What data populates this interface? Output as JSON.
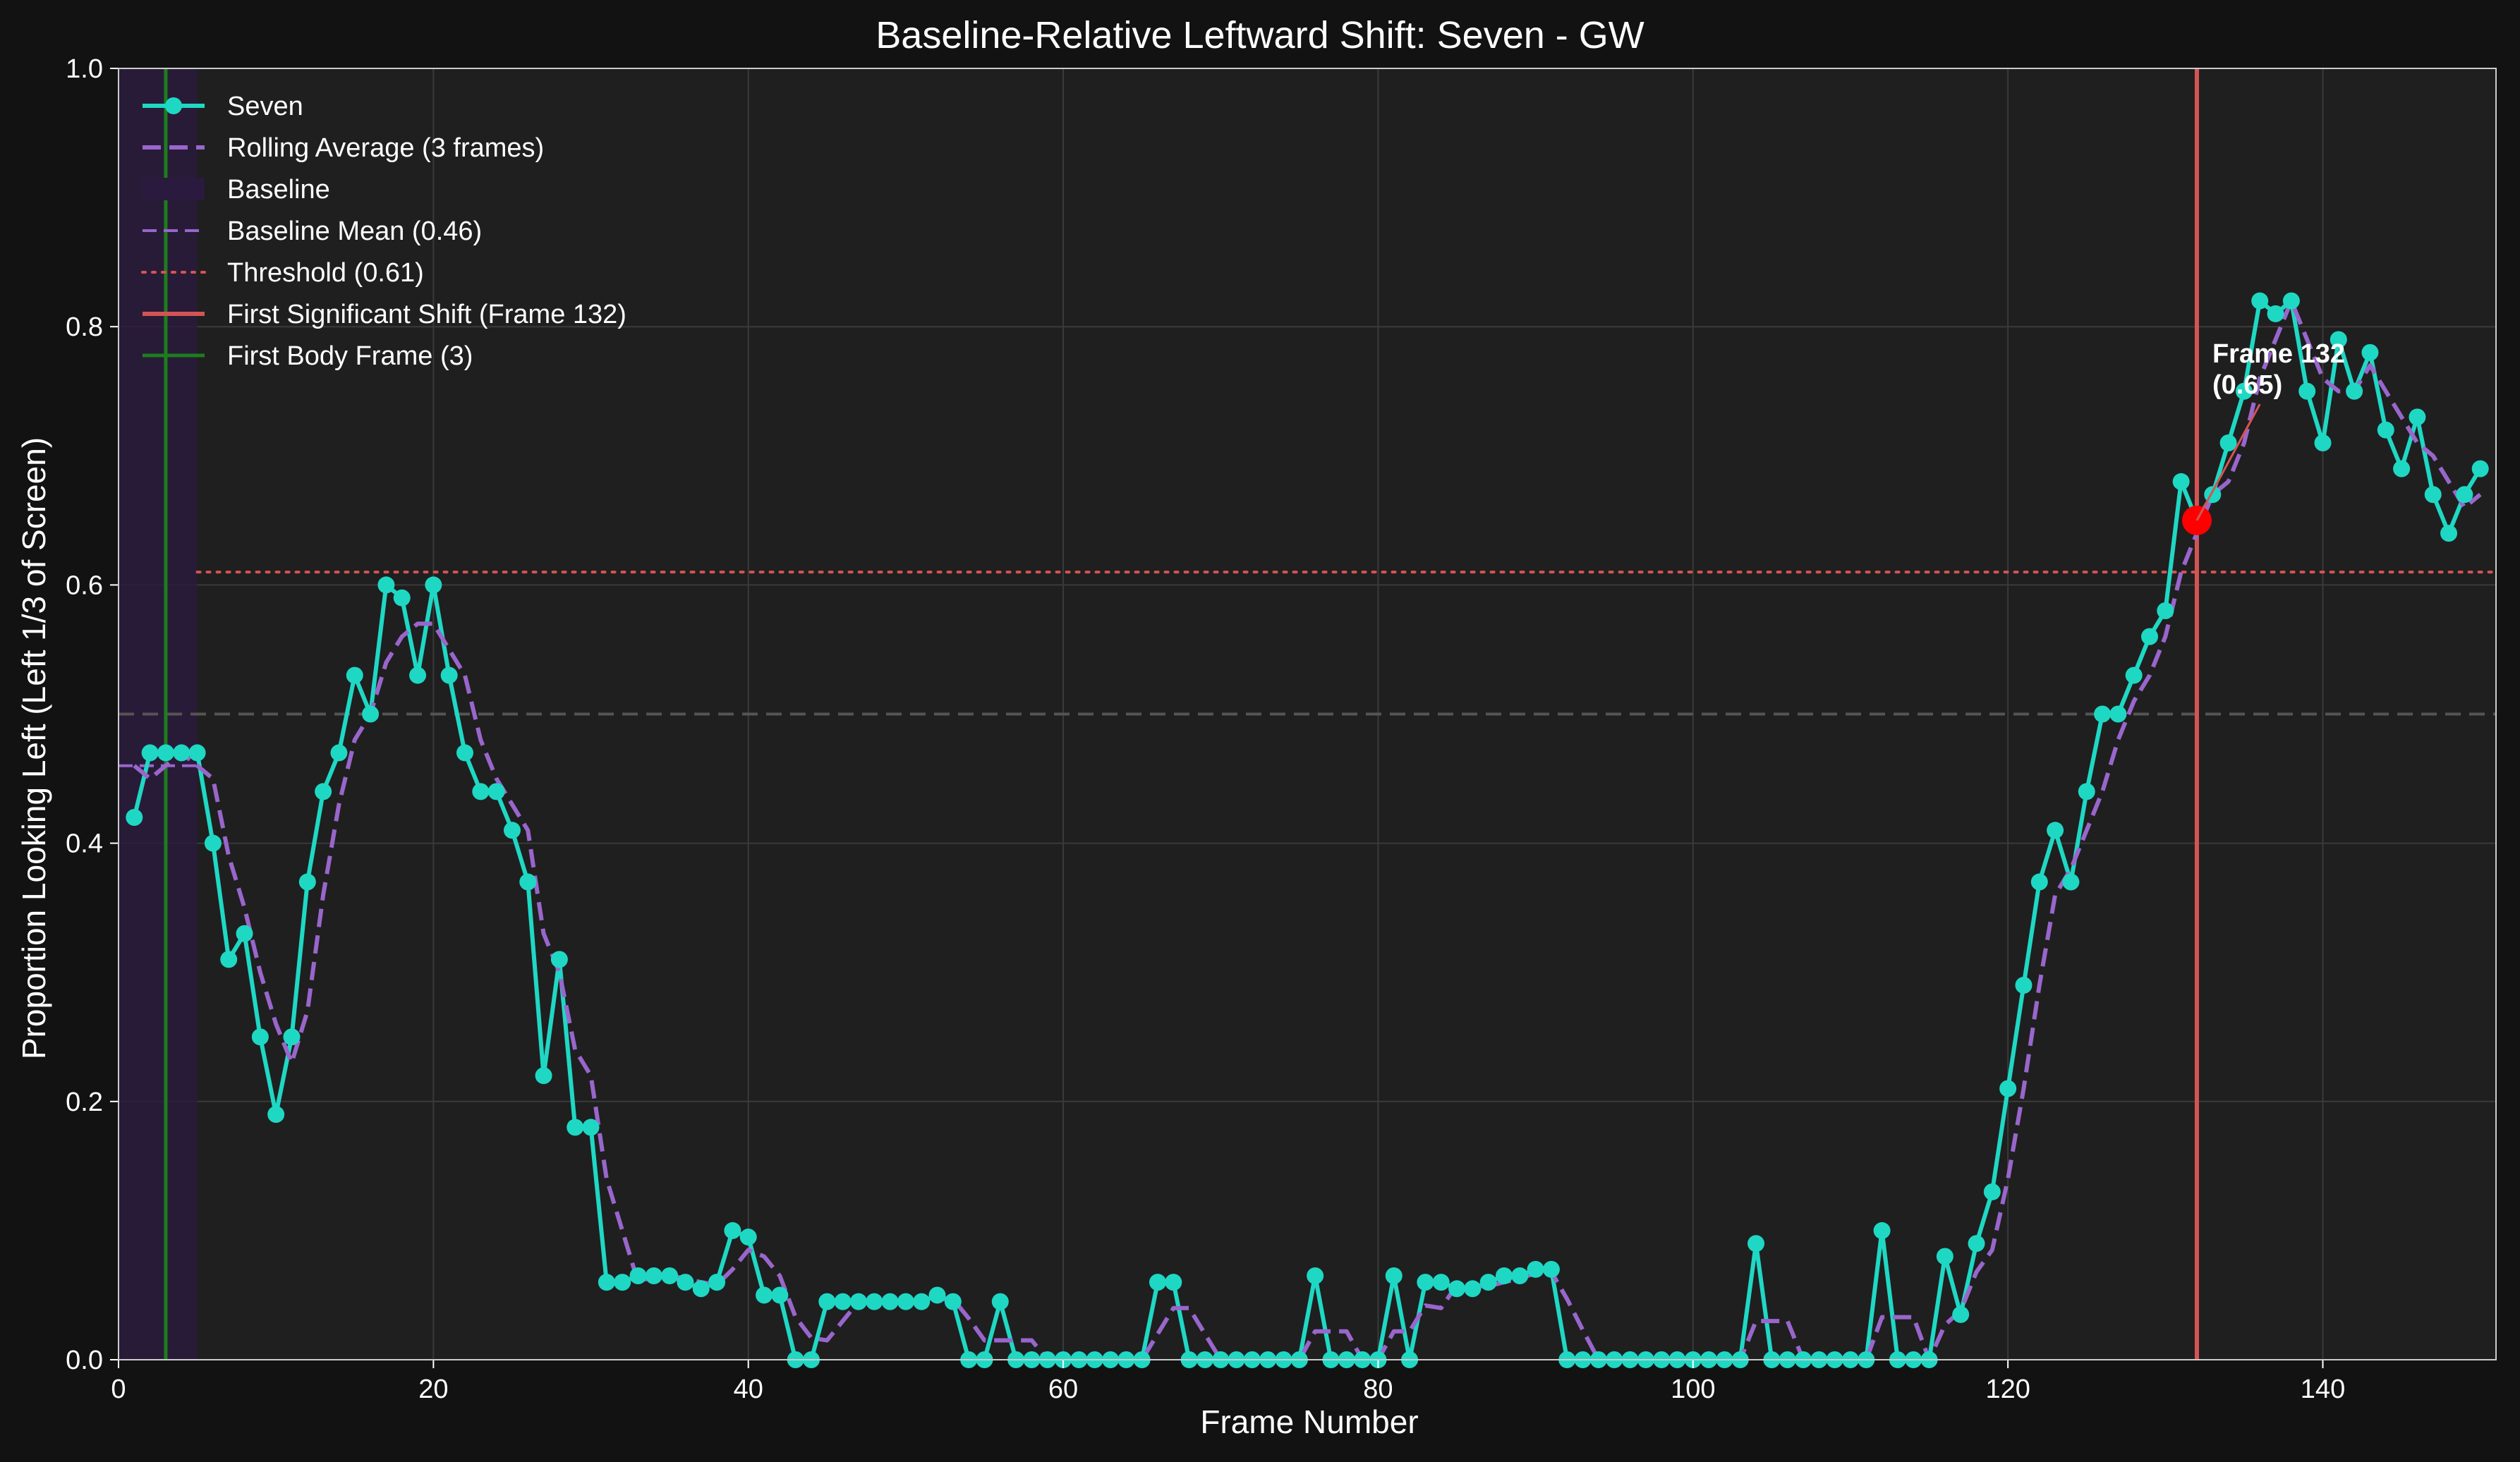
{
  "chart_data": {
    "type": "line",
    "title": "Baseline-Relative Leftward Shift: Seven - GW",
    "xlabel": "Frame Number",
    "ylabel": "Proportion Looking Left (Left 1/3 of Screen)",
    "xlim": [
      0,
      151
    ],
    "ylim": [
      0,
      1.0
    ],
    "x_ticks": [
      "0",
      "20",
      "40",
      "60",
      "80",
      "100",
      "120",
      "140"
    ],
    "y_ticks": [
      "0.0",
      "0.2",
      "0.4",
      "0.6",
      "0.8",
      "1.0"
    ],
    "grid": true,
    "legend_position": "top-left",
    "colors": {
      "series": "#1fd8c4",
      "rolling": "#9966cc",
      "baseline_band": "#2a1a3e",
      "threshold": "#d45454",
      "shift": "#d45454",
      "body": "#1e7d1e",
      "highlight": "#ff0000",
      "reference_line": "#555555"
    },
    "x": [
      1,
      2,
      3,
      4,
      5,
      6,
      7,
      8,
      9,
      10,
      11,
      12,
      13,
      14,
      15,
      16,
      17,
      18,
      19,
      20,
      21,
      22,
      23,
      24,
      25,
      26,
      27,
      28,
      29,
      30,
      31,
      32,
      33,
      34,
      35,
      36,
      37,
      38,
      39,
      40,
      41,
      42,
      43,
      44,
      45,
      46,
      47,
      48,
      49,
      50,
      51,
      52,
      53,
      54,
      55,
      56,
      57,
      58,
      59,
      60,
      61,
      62,
      63,
      64,
      65,
      66,
      67,
      68,
      69,
      70,
      71,
      72,
      73,
      74,
      75,
      76,
      77,
      78,
      79,
      80,
      81,
      82,
      83,
      84,
      85,
      86,
      87,
      88,
      89,
      90,
      91,
      92,
      93,
      94,
      95,
      96,
      97,
      98,
      99,
      100,
      101,
      102,
      103,
      104,
      105,
      106,
      107,
      108,
      109,
      110,
      111,
      112,
      113,
      114,
      115,
      116,
      117,
      118,
      119,
      120,
      121,
      122,
      123,
      124,
      125,
      126,
      127,
      128,
      129,
      130,
      131,
      132,
      133,
      134,
      135,
      136,
      137,
      138,
      139,
      140,
      141,
      142,
      143,
      144,
      145,
      146,
      147,
      148,
      149,
      150
    ],
    "series": [
      {
        "name": "Seven",
        "values": [
          0.42,
          0.47,
          0.47,
          0.47,
          0.47,
          0.4,
          0.31,
          0.33,
          0.25,
          0.19,
          0.25,
          0.37,
          0.44,
          0.47,
          0.53,
          0.5,
          0.6,
          0.59,
          0.53,
          0.6,
          0.53,
          0.47,
          0.44,
          0.44,
          0.41,
          0.37,
          0.22,
          0.31,
          0.18,
          0.18,
          0.06,
          0.06,
          0.065,
          0.065,
          0.065,
          0.06,
          0.055,
          0.06,
          0.1,
          0.095,
          0.05,
          0.05,
          0.0,
          0.0,
          0.045,
          0.045,
          0.045,
          0.045,
          0.045,
          0.045,
          0.045,
          0.05,
          0.045,
          0.0,
          0.0,
          0.045,
          0.0,
          0.0,
          0.0,
          0.0,
          0.0,
          0.0,
          0.0,
          0.0,
          0.0,
          0.06,
          0.06,
          0.0,
          0.0,
          0.0,
          0.0,
          0.0,
          0.0,
          0.0,
          0.0,
          0.065,
          0.0,
          0.0,
          0.0,
          0.0,
          0.065,
          0.0,
          0.06,
          0.06,
          0.055,
          0.055,
          0.06,
          0.065,
          0.065,
          0.07,
          0.07,
          0.0,
          0.0,
          0.0,
          0.0,
          0.0,
          0.0,
          0.0,
          0.0,
          0.0,
          0.0,
          0.0,
          0.0,
          0.09,
          0.0,
          0.0,
          0.0,
          0.0,
          0.0,
          0.0,
          0.0,
          0.1,
          0.0,
          0.0,
          0.0,
          0.08,
          0.035,
          0.09,
          0.13,
          0.21,
          0.29,
          0.37,
          0.41,
          0.37,
          0.44,
          0.5,
          0.5,
          0.53,
          0.56,
          0.58,
          0.68,
          0.65,
          0.67,
          0.71,
          0.75,
          0.82,
          0.81,
          0.82,
          0.75,
          0.71,
          0.79,
          0.75,
          0.78,
          0.72,
          0.69,
          0.73,
          0.67,
          0.64,
          0.67,
          0.69
        ]
      },
      {
        "name": "Rolling Average (3 frames)",
        "values": [
          0.46,
          0.45,
          0.46,
          0.47,
          0.46,
          0.45,
          0.39,
          0.35,
          0.3,
          0.26,
          0.23,
          0.27,
          0.36,
          0.43,
          0.48,
          0.5,
          0.54,
          0.56,
          0.57,
          0.57,
          0.55,
          0.53,
          0.48,
          0.45,
          0.43,
          0.41,
          0.33,
          0.3,
          0.24,
          0.22,
          0.14,
          0.1,
          0.06,
          0.065,
          0.065,
          0.063,
          0.06,
          0.058,
          0.07,
          0.085,
          0.08,
          0.065,
          0.033,
          0.017,
          0.015,
          0.03,
          0.045,
          0.045,
          0.045,
          0.045,
          0.045,
          0.047,
          0.047,
          0.032,
          0.015,
          0.015,
          0.015,
          0.015,
          0.0,
          0.0,
          0.0,
          0.0,
          0.0,
          0.0,
          0.0,
          0.02,
          0.04,
          0.04,
          0.02,
          0.0,
          0.0,
          0.0,
          0.0,
          0.0,
          0.0,
          0.022,
          0.022,
          0.022,
          0.0,
          0.0,
          0.022,
          0.022,
          0.042,
          0.04,
          0.058,
          0.057,
          0.057,
          0.06,
          0.063,
          0.067,
          0.068,
          0.047,
          0.023,
          0.0,
          0.0,
          0.0,
          0.0,
          0.0,
          0.0,
          0.0,
          0.0,
          0.0,
          0.0,
          0.03,
          0.03,
          0.03,
          0.0,
          0.0,
          0.0,
          0.0,
          0.0,
          0.033,
          0.033,
          0.033,
          0.0,
          0.027,
          0.038,
          0.068,
          0.085,
          0.14,
          0.21,
          0.29,
          0.36,
          0.38,
          0.41,
          0.44,
          0.48,
          0.51,
          0.53,
          0.56,
          0.61,
          0.64,
          0.67,
          0.68,
          0.71,
          0.76,
          0.79,
          0.82,
          0.79,
          0.76,
          0.75,
          0.75,
          0.77,
          0.75,
          0.73,
          0.71,
          0.7,
          0.68,
          0.66,
          0.67
        ]
      }
    ],
    "baseline": {
      "label": "Baseline",
      "x_range": [
        0,
        5
      ]
    },
    "baseline_mean": {
      "label": "Baseline Mean (0.46)",
      "value": 0.46,
      "x_range": [
        0,
        5
      ]
    },
    "threshold": {
      "label": "Threshold (0.61)",
      "value": 0.61,
      "x_range": [
        5,
        151
      ]
    },
    "reference_line": {
      "value": 0.5
    },
    "first_shift": {
      "label": "First Significant Shift (Frame 132)",
      "frame": 132,
      "value": 0.65
    },
    "first_body": {
      "label": "First Body Frame (3)",
      "frame": 3
    },
    "annotation": {
      "line1": "Frame 132",
      "line2": "(0.65)",
      "frame": 132,
      "value": 0.65,
      "arrow_to": [
        136,
        0.74
      ]
    }
  }
}
